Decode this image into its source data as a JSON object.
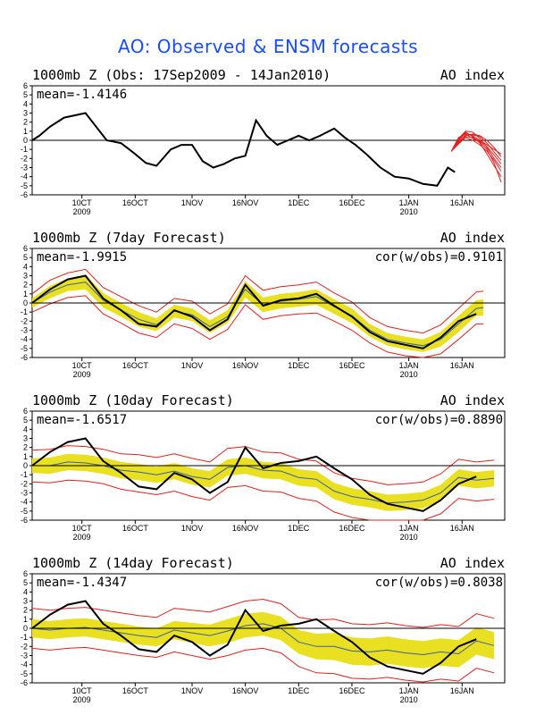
{
  "figure": {
    "title": "AO: Observed & ENSM forecasts"
  },
  "x_axis": {
    "tick_labels": [
      "10CT\n2009",
      "16OCT",
      "1NOV",
      "16NOV",
      "1DEC",
      "16DEC",
      "1JAN\n2010",
      "16JAN"
    ],
    "tick_dates": [
      "2009-10-01",
      "2009-10-16",
      "2009-11-01",
      "2009-11-16",
      "2009-12-01",
      "2009-12-16",
      "2010-01-01",
      "2010-01-16"
    ],
    "range": [
      "2009-09-17",
      "2010-01-28"
    ]
  },
  "y_axis": {
    "ylim": [
      -6,
      6
    ],
    "ticks": [
      -6,
      -5,
      -4,
      -3,
      -2,
      -1,
      0,
      1,
      2,
      3,
      4,
      5,
      6
    ]
  },
  "colors": {
    "observed": "#000000",
    "spread_fill": "#e8e020",
    "members": "#e02020",
    "ensemble_mean": "#3f5f9f",
    "zero_line": "#000000"
  },
  "chart_data": [
    {
      "type": "line",
      "title": "1000mb Z (Obs: 17Sep2009 - 14Jan2010)",
      "right_label": "AO index",
      "mean_text": "mean=-1.4146",
      "cor_text": "",
      "observed": {
        "dates": [
          "2009-09-17",
          "2009-09-19",
          "2009-09-22",
          "2009-09-26",
          "2009-10-02",
          "2009-10-05",
          "2009-10-08",
          "2009-10-12",
          "2009-10-16",
          "2009-10-19",
          "2009-10-22",
          "2009-10-26",
          "2009-10-29",
          "2009-11-01",
          "2009-11-04",
          "2009-11-07",
          "2009-11-10",
          "2009-11-13",
          "2009-11-16",
          "2009-11-19",
          "2009-11-22",
          "2009-11-25",
          "2009-11-28",
          "2009-12-01",
          "2009-12-04",
          "2009-12-07",
          "2009-12-11",
          "2009-12-14",
          "2009-12-17",
          "2009-12-20",
          "2009-12-24",
          "2009-12-28",
          "2010-01-01",
          "2010-01-05",
          "2010-01-09",
          "2010-01-12",
          "2010-01-14"
        ],
        "values": [
          0.0,
          0.5,
          1.5,
          2.5,
          3.0,
          1.5,
          0.0,
          -0.3,
          -1.5,
          -2.5,
          -2.8,
          -1.0,
          -0.5,
          -0.5,
          -2.3,
          -3.0,
          -2.6,
          -2.0,
          -1.7,
          2.2,
          0.5,
          -0.5,
          0.0,
          0.5,
          0.0,
          0.5,
          1.3,
          0.3,
          -0.5,
          -1.5,
          -3.0,
          -4.0,
          -4.2,
          -4.8,
          -5.0,
          -3.0,
          -3.5
        ]
      },
      "forecast": {
        "dates": [
          "2010-01-13",
          "2010-01-15",
          "2010-01-17",
          "2010-01-19",
          "2010-01-21",
          "2010-01-23",
          "2010-01-25",
          "2010-01-27"
        ],
        "members": [
          [
            -1.2,
            0.0,
            0.8,
            0.5,
            0.0,
            -0.5,
            -1.0,
            -1.5
          ],
          [
            -1.2,
            -0.2,
            0.6,
            0.6,
            0.4,
            -0.3,
            -1.3,
            -2.2
          ],
          [
            -1.2,
            0.2,
            1.0,
            0.9,
            0.2,
            -0.8,
            -2.0,
            -3.0
          ],
          [
            -1.2,
            -0.4,
            0.3,
            0.0,
            -0.5,
            -1.2,
            -2.2,
            -3.4
          ],
          [
            -1.2,
            0.1,
            0.9,
            0.4,
            -0.3,
            -1.5,
            -2.8,
            -4.0
          ],
          [
            -1.2,
            -0.1,
            0.5,
            0.7,
            0.5,
            0.0,
            -0.8,
            -1.8
          ],
          [
            -1.2,
            0.3,
            0.7,
            0.2,
            -0.2,
            -1.0,
            -2.5,
            -4.6
          ],
          [
            -1.2,
            -0.3,
            0.4,
            0.3,
            -0.1,
            -0.7,
            -1.6,
            -2.6
          ]
        ]
      }
    },
    {
      "type": "area",
      "title": "1000mb Z (7day Forecast)",
      "right_label": "AO index",
      "mean_text": "mean=-1.9915",
      "cor_text": "cor(w/obs)=0.9101",
      "dates": [
        "2009-09-17",
        "2009-09-22",
        "2009-09-27",
        "2009-10-02",
        "2009-10-07",
        "2009-10-12",
        "2009-10-17",
        "2009-10-22",
        "2009-10-27",
        "2009-11-01",
        "2009-11-06",
        "2009-11-11",
        "2009-11-16",
        "2009-11-21",
        "2009-11-26",
        "2009-12-01",
        "2009-12-06",
        "2009-12-11",
        "2009-12-16",
        "2009-12-21",
        "2009-12-26",
        "2009-12-31",
        "2010-01-05",
        "2010-01-10",
        "2010-01-15",
        "2010-01-20",
        "2010-01-22"
      ],
      "observed": [
        0.0,
        1.5,
        2.6,
        3.0,
        0.5,
        -0.8,
        -2.3,
        -2.6,
        -0.8,
        -1.5,
        -3.0,
        -1.8,
        2.0,
        -0.3,
        0.3,
        0.5,
        1.0,
        -0.3,
        -1.5,
        -3.2,
        -4.2,
        -4.6,
        -5.0,
        -3.8,
        -2.0,
        -1.2,
        null
      ],
      "ens_mean": [
        0.0,
        1.2,
        2.0,
        2.3,
        0.3,
        -0.8,
        -1.8,
        -2.4,
        -0.9,
        -1.3,
        -2.6,
        -1.5,
        1.5,
        -0.2,
        0.2,
        0.4,
        0.7,
        -0.4,
        -1.4,
        -3.0,
        -4.0,
        -4.4,
        -4.7,
        -4.0,
        -2.3,
        -0.6,
        -0.5
      ],
      "spread_low": [
        -0.5,
        0.5,
        1.3,
        1.5,
        -0.5,
        -1.5,
        -2.6,
        -3.1,
        -1.6,
        -2.0,
        -3.3,
        -2.2,
        0.6,
        -1.0,
        -0.6,
        -0.4,
        -0.2,
        -1.2,
        -2.2,
        -3.7,
        -4.7,
        -5.1,
        -5.4,
        -4.8,
        -3.2,
        -1.4,
        -1.4
      ],
      "spread_high": [
        0.5,
        1.9,
        2.7,
        3.1,
        1.1,
        0.0,
        -1.0,
        -1.7,
        -0.2,
        -0.6,
        -1.9,
        -0.8,
        2.4,
        0.6,
        1.0,
        1.2,
        1.5,
        0.4,
        -0.6,
        -2.3,
        -3.3,
        -3.7,
        -4.0,
        -3.2,
        -1.4,
        0.3,
        0.4
      ],
      "member_low": [
        -1.0,
        -0.1,
        0.6,
        0.8,
        -1.2,
        -2.2,
        -3.3,
        -3.8,
        -2.3,
        -2.8,
        -4.0,
        -2.9,
        -0.2,
        -1.8,
        -1.4,
        -1.2,
        -1.1,
        -2.0,
        -3.0,
        -4.4,
        -5.4,
        -5.8,
        -6.0,
        -5.6,
        -4.0,
        -2.3,
        -2.3
      ],
      "member_high": [
        1.0,
        2.5,
        3.3,
        3.7,
        1.7,
        0.7,
        -0.3,
        -1.0,
        0.5,
        0.2,
        -1.2,
        -0.1,
        3.0,
        1.4,
        1.8,
        2.0,
        2.3,
        1.1,
        0.1,
        -1.6,
        -2.6,
        -3.0,
        -3.3,
        -2.4,
        -0.6,
        1.2,
        1.3
      ]
    },
    {
      "type": "area",
      "title": "1000mb Z (10day Forecast)",
      "right_label": "AO index",
      "mean_text": "mean=-1.6517",
      "cor_text": "cor(w/obs)=0.8890",
      "dates": [
        "2009-09-17",
        "2009-09-22",
        "2009-09-27",
        "2009-10-02",
        "2009-10-07",
        "2009-10-12",
        "2009-10-17",
        "2009-10-22",
        "2009-10-27",
        "2009-11-01",
        "2009-11-06",
        "2009-11-11",
        "2009-11-16",
        "2009-11-21",
        "2009-11-26",
        "2009-12-01",
        "2009-12-06",
        "2009-12-11",
        "2009-12-16",
        "2009-12-21",
        "2009-12-26",
        "2009-12-31",
        "2010-01-05",
        "2010-01-10",
        "2010-01-15",
        "2010-01-20",
        "2010-01-25"
      ],
      "observed": [
        0.0,
        1.5,
        2.6,
        3.0,
        0.5,
        -0.8,
        -2.3,
        -2.6,
        -0.8,
        -1.5,
        -3.0,
        -1.8,
        2.0,
        -0.3,
        0.3,
        0.5,
        1.0,
        -0.3,
        -1.5,
        -3.2,
        -4.2,
        -4.6,
        -5.0,
        -3.8,
        -2.0,
        -1.2,
        null
      ],
      "ens_mean": [
        0.0,
        0.0,
        0.4,
        0.3,
        0.0,
        -0.5,
        -0.7,
        -1.0,
        -0.6,
        -1.2,
        -1.5,
        -0.2,
        0.0,
        -0.5,
        -0.6,
        -1.3,
        -1.5,
        -2.8,
        -3.4,
        -3.7,
        -4.1,
        -4.0,
        -3.8,
        -3.0,
        -1.3,
        -1.6,
        -1.4
      ],
      "spread_low": [
        -0.8,
        -0.9,
        -0.5,
        -0.6,
        -0.9,
        -1.4,
        -1.6,
        -1.9,
        -1.5,
        -2.1,
        -2.4,
        -1.1,
        -0.9,
        -1.4,
        -1.5,
        -2.2,
        -2.4,
        -3.7,
        -4.3,
        -4.6,
        -5.0,
        -4.9,
        -4.7,
        -3.9,
        -2.2,
        -2.5,
        -2.3
      ],
      "spread_high": [
        0.8,
        0.9,
        1.3,
        1.2,
        0.9,
        0.4,
        0.2,
        -0.1,
        0.3,
        -0.3,
        -0.6,
        0.7,
        0.9,
        0.4,
        0.3,
        -0.4,
        -0.6,
        -1.9,
        -2.5,
        -2.8,
        -3.2,
        -3.1,
        -2.9,
        -2.1,
        -0.4,
        -0.7,
        -0.5
      ],
      "member_low": [
        -1.8,
        -1.9,
        -1.6,
        -1.7,
        -2.0,
        -2.6,
        -2.9,
        -3.2,
        -2.8,
        -3.4,
        -3.8,
        -2.4,
        -2.2,
        -2.8,
        -2.9,
        -3.6,
        -3.9,
        -5.1,
        -5.7,
        -6.0,
        -6.0,
        -6.0,
        -6.0,
        -5.3,
        -3.6,
        -3.9,
        -3.7
      ],
      "member_high": [
        1.7,
        1.8,
        2.2,
        2.1,
        1.8,
        1.3,
        1.2,
        0.9,
        1.3,
        0.8,
        0.4,
        1.9,
        2.1,
        1.5,
        1.4,
        0.7,
        0.5,
        -0.8,
        -1.4,
        -1.7,
        -2.1,
        -2.0,
        -1.8,
        -0.9,
        0.7,
        0.4,
        0.6
      ]
    },
    {
      "type": "area",
      "title": "1000mb Z (14day Forecast)",
      "right_label": "AO index",
      "mean_text": "mean=-1.4347",
      "cor_text": "cor(w/obs)=0.8038",
      "dates": [
        "2009-09-17",
        "2009-09-22",
        "2009-09-27",
        "2009-10-02",
        "2009-10-07",
        "2009-10-12",
        "2009-10-17",
        "2009-10-22",
        "2009-10-27",
        "2009-11-01",
        "2009-11-06",
        "2009-11-11",
        "2009-11-16",
        "2009-11-21",
        "2009-11-26",
        "2009-12-01",
        "2009-12-06",
        "2009-12-11",
        "2009-12-16",
        "2009-12-21",
        "2009-12-26",
        "2009-12-31",
        "2010-01-05",
        "2010-01-10",
        "2010-01-15",
        "2010-01-20",
        "2010-01-25"
      ],
      "observed": [
        0.0,
        1.5,
        2.6,
        3.0,
        0.5,
        -0.8,
        -2.3,
        -2.6,
        -0.8,
        -1.5,
        -3.0,
        -1.8,
        2.0,
        -0.3,
        0.3,
        0.5,
        1.0,
        -0.3,
        -1.5,
        -3.2,
        -4.2,
        -4.6,
        -5.0,
        -3.8,
        -2.0,
        -1.2,
        null
      ],
      "ens_mean": [
        0.0,
        -0.2,
        0.0,
        0.1,
        -0.2,
        -0.5,
        -0.8,
        -1.0,
        -0.2,
        -0.5,
        -0.8,
        -0.3,
        0.3,
        0.5,
        0.0,
        -1.5,
        -2.0,
        -2.0,
        -2.5,
        -2.6,
        -2.4,
        -2.7,
        -2.9,
        -2.6,
        -2.8,
        -1.4,
        -1.9
      ],
      "spread_low": [
        -1.0,
        -1.2,
        -1.0,
        -0.9,
        -1.2,
        -1.5,
        -1.8,
        -2.0,
        -1.2,
        -1.6,
        -2.0,
        -1.6,
        -1.0,
        -0.8,
        -1.3,
        -2.8,
        -3.4,
        -3.5,
        -4.0,
        -4.1,
        -3.9,
        -4.2,
        -4.4,
        -4.1,
        -4.3,
        -2.9,
        -3.4
      ],
      "spread_high": [
        1.0,
        0.8,
        1.0,
        1.1,
        0.8,
        0.5,
        0.2,
        0.0,
        0.8,
        0.6,
        0.4,
        1.0,
        1.6,
        1.8,
        1.3,
        -0.2,
        -0.6,
        -0.5,
        -1.0,
        -1.1,
        -0.9,
        -1.2,
        -1.4,
        -1.1,
        -1.3,
        0.1,
        -0.4
      ],
      "member_low": [
        -2.2,
        -2.4,
        -2.2,
        -2.1,
        -2.4,
        -2.7,
        -3.0,
        -3.2,
        -2.6,
        -3.0,
        -3.4,
        -3.0,
        -2.4,
        -2.2,
        -2.7,
        -4.2,
        -4.9,
        -5.0,
        -5.5,
        -5.6,
        -5.4,
        -5.7,
        -5.9,
        -5.6,
        -5.8,
        -4.4,
        -4.9
      ],
      "member_high": [
        2.2,
        2.0,
        2.2,
        2.3,
        2.0,
        1.7,
        1.4,
        1.2,
        2.2,
        2.0,
        1.8,
        2.4,
        3.0,
        3.2,
        2.7,
        1.2,
        0.9,
        1.0,
        0.5,
        0.4,
        0.6,
        0.3,
        0.1,
        0.4,
        0.2,
        1.6,
        1.1
      ]
    }
  ]
}
